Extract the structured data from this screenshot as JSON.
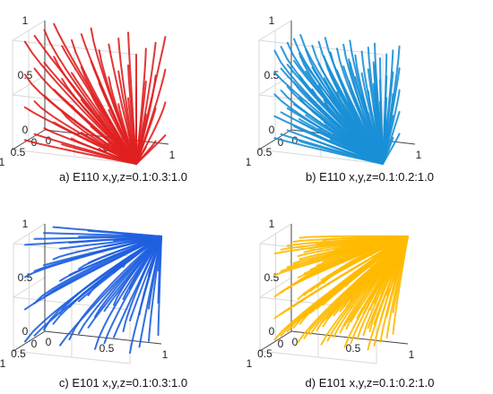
{
  "chart_data": [
    {
      "type": "line",
      "variant": "3d-trajectories",
      "caption": "a) E110 x,y,z=0.1:0.3:1.0",
      "color": "#e02020",
      "convergence_point": [
        1,
        1,
        0
      ],
      "start_grid": [
        0.1,
        0.4,
        0.7,
        1.0
      ],
      "z_ticks": [
        "0",
        "0.5",
        "1"
      ],
      "y_ticks": [
        "0",
        "0.5",
        "1"
      ],
      "x_ticks": [
        "0",
        "0.5",
        "1"
      ],
      "axis_range": [
        0,
        1
      ],
      "grid": true
    },
    {
      "type": "line",
      "variant": "3d-trajectories",
      "caption": "b) E110 x,y,z=0.1:0.2:1.0",
      "color": "#1a8fd6",
      "convergence_point": [
        1,
        1,
        0
      ],
      "start_grid": [
        0.1,
        0.3,
        0.5,
        0.7,
        0.9
      ],
      "z_ticks": [
        "0",
        "0.5",
        "1"
      ],
      "y_ticks": [
        "0",
        "0.5",
        "1"
      ],
      "x_ticks": [
        "0",
        "0.5",
        "1"
      ],
      "axis_range": [
        0,
        1
      ],
      "grid": true
    },
    {
      "type": "line",
      "variant": "3d-trajectories",
      "caption": "c) E101 x,y,z=0.1:0.3:1.0",
      "color": "#1f5fe0",
      "convergence_point": [
        1,
        0,
        1
      ],
      "start_grid": [
        0.1,
        0.4,
        0.7,
        1.0
      ],
      "z_ticks": [
        "0",
        "0.5",
        "1"
      ],
      "y_ticks": [
        "0",
        "0.5",
        "1"
      ],
      "x_ticks": [
        "0",
        "0.5",
        "1"
      ],
      "axis_range": [
        0,
        1
      ],
      "grid": true
    },
    {
      "type": "line",
      "variant": "3d-trajectories",
      "caption": "d) E101 x,y,z=0.1:0.2:1.0",
      "color": "#ffba00",
      "convergence_point": [
        1,
        0,
        1
      ],
      "start_grid": [
        0.1,
        0.3,
        0.5,
        0.7,
        0.9
      ],
      "z_ticks": [
        "0",
        "0.5",
        "1"
      ],
      "y_ticks": [
        "0",
        "0.5",
        "1"
      ],
      "x_ticks": [
        "0",
        "0.5",
        "1"
      ],
      "axis_range": [
        0,
        1
      ],
      "grid": true
    }
  ]
}
